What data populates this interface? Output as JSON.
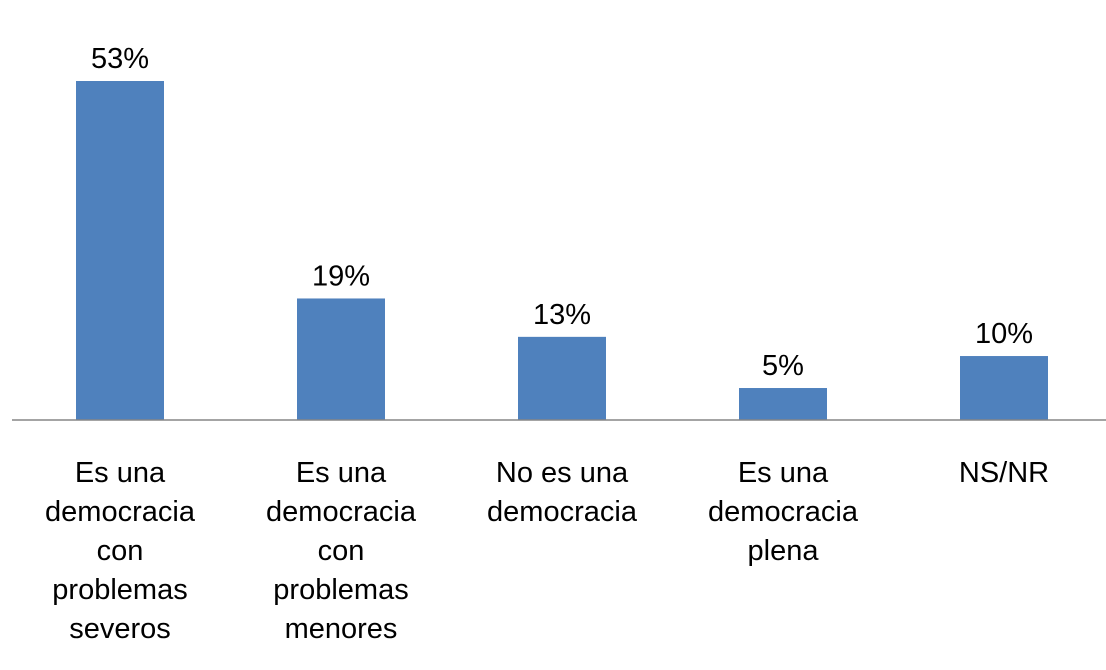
{
  "chart_data": {
    "type": "bar",
    "title": "",
    "xlabel": "",
    "ylabel": "",
    "ylim": [
      0,
      53
    ],
    "grid": false,
    "legend": "none",
    "categories": [
      [
        "Es una",
        "democracia",
        "con",
        "problemas",
        "severos"
      ],
      [
        "Es una",
        "democracia",
        "con",
        "problemas",
        "menores"
      ],
      [
        "No es una",
        "democracia"
      ],
      [
        "Es una",
        "democracia",
        "plena"
      ],
      [
        "NS/NR"
      ]
    ],
    "values": [
      53,
      19,
      13,
      5,
      10
    ],
    "data_labels": [
      "53%",
      "19%",
      "13%",
      "5%",
      "10%"
    ],
    "bar_color": "#4f81bd",
    "axis_color": "#868686"
  }
}
